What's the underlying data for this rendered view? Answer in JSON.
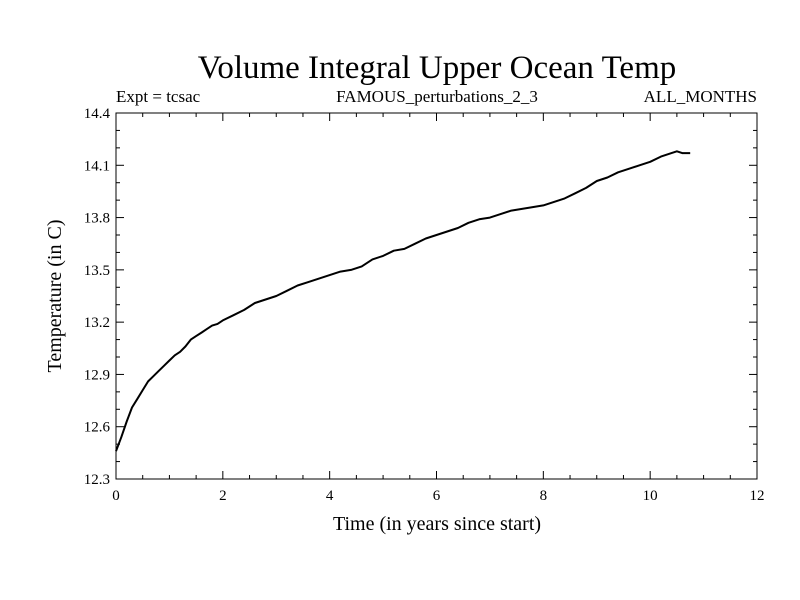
{
  "chart_data": {
    "type": "line",
    "title": "Volume Integral Upper Ocean Temp",
    "subtitle_left": "Expt = tcsac",
    "subtitle_center": "FAMOUS_perturbations_2_3",
    "subtitle_right": "ALL_MONTHS",
    "xlabel": "Time (in years since start)",
    "ylabel": "Temperature (in C)",
    "xlim": [
      0,
      12
    ],
    "ylim": [
      12.3,
      14.4
    ],
    "xticks": [
      "0",
      "2",
      "4",
      "6",
      "8",
      "10",
      "12"
    ],
    "yticks": [
      "12.3",
      "12.6",
      "12.9",
      "13.2",
      "13.5",
      "13.8",
      "14.1",
      "14.4"
    ],
    "grid": false,
    "line_color": "#000000",
    "series": [
      {
        "x": [
          0.0,
          0.1,
          0.2,
          0.3,
          0.4,
          0.5,
          0.6,
          0.7,
          0.8,
          0.9,
          1.0,
          1.1,
          1.2,
          1.3,
          1.4,
          1.5,
          1.6,
          1.7,
          1.8,
          1.9,
          2.0,
          2.2,
          2.4,
          2.6,
          2.8,
          3.0,
          3.2,
          3.4,
          3.6,
          3.8,
          4.0,
          4.2,
          4.4,
          4.6,
          4.8,
          5.0,
          5.2,
          5.4,
          5.6,
          5.8,
          6.0,
          6.2,
          6.4,
          6.6,
          6.8,
          7.0,
          7.2,
          7.4,
          7.6,
          7.8,
          8.0,
          8.2,
          8.4,
          8.6,
          8.8,
          9.0,
          9.2,
          9.4,
          9.6,
          9.8,
          10.0,
          10.2,
          10.4,
          10.5,
          10.6,
          10.75
        ],
        "y": [
          12.46,
          12.54,
          12.63,
          12.71,
          12.76,
          12.81,
          12.86,
          12.89,
          12.92,
          12.95,
          12.98,
          13.01,
          13.03,
          13.06,
          13.1,
          13.12,
          13.14,
          13.16,
          13.18,
          13.19,
          13.21,
          13.24,
          13.27,
          13.31,
          13.33,
          13.35,
          13.38,
          13.41,
          13.43,
          13.45,
          13.47,
          13.49,
          13.5,
          13.52,
          13.56,
          13.58,
          13.61,
          13.62,
          13.65,
          13.68,
          13.7,
          13.72,
          13.74,
          13.77,
          13.79,
          13.8,
          13.82,
          13.84,
          13.85,
          13.86,
          13.87,
          13.89,
          13.91,
          13.94,
          13.97,
          14.01,
          14.03,
          14.06,
          14.08,
          14.1,
          14.12,
          14.15,
          14.17,
          14.18,
          14.17,
          14.17
        ]
      }
    ]
  }
}
